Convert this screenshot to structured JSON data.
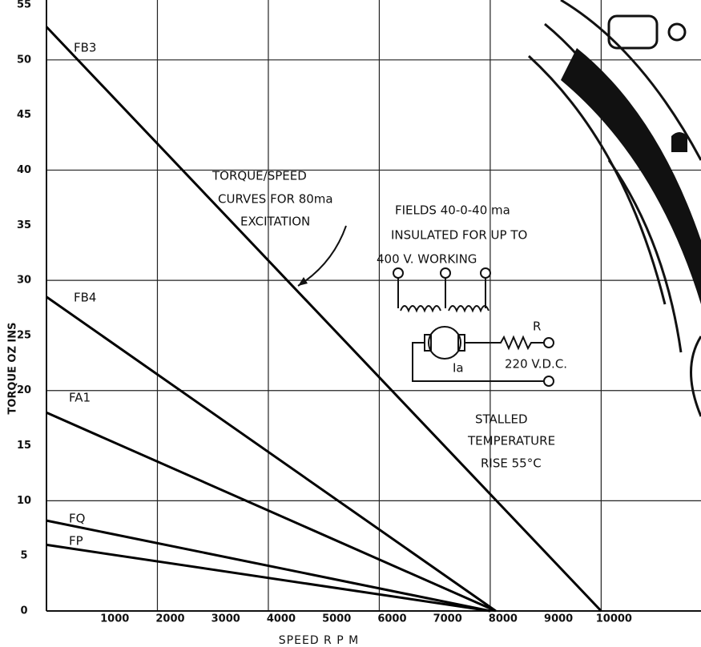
{
  "chart_data": {
    "type": "line",
    "x_label": "SPEED R P M",
    "y_label": "TORQUE OZ INS",
    "xlim": [
      0,
      11800
    ],
    "ylim": [
      0,
      55
    ],
    "xticks": [
      1000,
      2000,
      3000,
      4000,
      5000,
      6000,
      7000,
      8000,
      9000,
      10000
    ],
    "yticks": [
      0,
      5,
      10,
      15,
      20,
      25,
      30,
      35,
      40,
      45,
      50,
      55
    ],
    "grid": true,
    "series": [
      {
        "name": "FB3",
        "color": "#000000",
        "x": [
          0,
          10000
        ],
        "values": [
          53,
          0
        ]
      },
      {
        "name": "FB4",
        "color": "#000000",
        "x": [
          0,
          8100
        ],
        "values": [
          28.5,
          0
        ]
      },
      {
        "name": "FA1",
        "color": "#000000",
        "x": [
          0,
          8100
        ],
        "values": [
          18,
          0
        ]
      },
      {
        "name": "FQ",
        "color": "#000000",
        "x": [
          0,
          8000
        ],
        "values": [
          8.2,
          0
        ]
      },
      {
        "name": "FP",
        "color": "#000000",
        "x": [
          0,
          8000
        ],
        "values": [
          6,
          0
        ]
      }
    ],
    "annotations": [
      "TORQUE/SPEED",
      "CURVES FOR 80ma",
      "EXCITATION",
      "FIELDS 40-0-40 ma",
      "INSULATED FOR UP TO",
      "400 V. WORKING",
      "R",
      "Ia",
      "220 V.D.C.",
      "STALLED",
      "TEMPERATURE",
      "RISE 55°C"
    ]
  }
}
